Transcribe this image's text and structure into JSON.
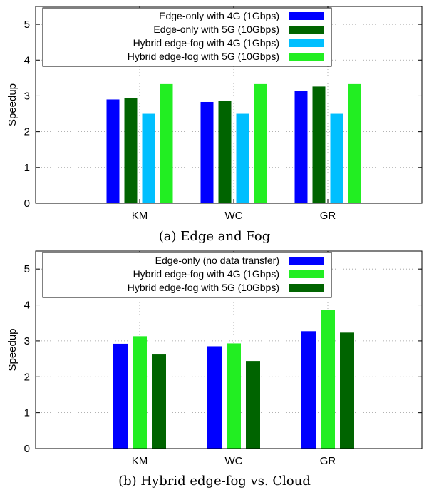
{
  "chart_data": [
    {
      "type": "bar",
      "caption": "(a) Edge and Fog",
      "ylabel": "Speedup",
      "xlabel": "",
      "ylim": [
        0,
        5.5
      ],
      "yticks": [
        0,
        1,
        2,
        3,
        4,
        5
      ],
      "categories": [
        "KM",
        "WC",
        "GR"
      ],
      "grid": true,
      "legend_position": "top-right",
      "series": [
        {
          "name": "Edge-only with 4G (1Gbps)",
          "color": "#0000ff",
          "values": [
            2.9,
            2.83,
            3.13
          ]
        },
        {
          "name": "Edge-only with 5G (10Gbps)",
          "color": "#006400",
          "values": [
            2.93,
            2.85,
            3.26
          ]
        },
        {
          "name": "Hybrid edge-fog with 4G (1Gbps)",
          "color": "#00bfff",
          "values": [
            2.5,
            2.5,
            2.5
          ]
        },
        {
          "name": "Hybrid edge-fog with 5G (10Gbps)",
          "color": "#22ee22",
          "values": [
            3.33,
            3.33,
            3.33
          ]
        }
      ]
    },
    {
      "type": "bar",
      "caption": "(b) Hybrid edge-fog vs. Cloud",
      "ylabel": "Speedup",
      "xlabel": "",
      "ylim": [
        0,
        5.5
      ],
      "yticks": [
        0,
        1,
        2,
        3,
        4,
        5
      ],
      "categories": [
        "KM",
        "WC",
        "GR"
      ],
      "grid": true,
      "legend_position": "top-right",
      "series": [
        {
          "name": "Edge-only (no data transfer)",
          "color": "#0000ff",
          "values": [
            2.92,
            2.85,
            3.27
          ]
        },
        {
          "name": "Hybrid edge-fog with 4G (1Gbps)",
          "color": "#22ee22",
          "values": [
            3.13,
            2.93,
            3.86
          ]
        },
        {
          "name": "Hybrid edge-fog with 5G (10Gbps)",
          "color": "#006400",
          "values": [
            2.62,
            2.44,
            3.23
          ]
        }
      ]
    }
  ]
}
